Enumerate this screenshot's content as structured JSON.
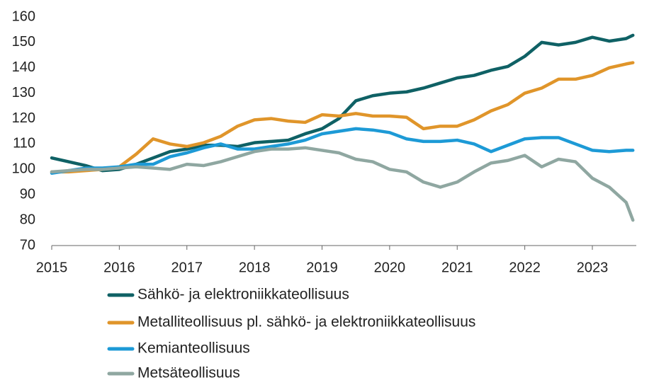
{
  "chart_data": {
    "type": "line",
    "x": [
      2015,
      2015.25,
      2015.5,
      2015.75,
      2016,
      2016.25,
      2016.5,
      2016.75,
      2017,
      2017.25,
      2017.5,
      2017.75,
      2018,
      2018.25,
      2018.5,
      2018.75,
      2019,
      2019.25,
      2019.5,
      2019.75,
      2020,
      2020.25,
      2020.5,
      2020.75,
      2021,
      2021.25,
      2021.5,
      2021.75,
      2022,
      2022.25,
      2022.5,
      2022.75,
      2023,
      2023.25,
      2023.5,
      2023.6
    ],
    "series": [
      {
        "name": "Sähkö- ja elektroniikkateollisuus",
        "color": "#0f6165",
        "values": [
          104.5,
          103,
          101.5,
          99.5,
          100,
          102,
          104.5,
          107,
          108,
          109.5,
          109.5,
          109,
          110.5,
          111,
          111.5,
          114,
          116,
          120,
          127,
          129,
          130,
          130.5,
          132,
          134,
          136,
          137,
          139,
          140.5,
          144.5,
          150,
          149,
          150,
          152,
          150.5,
          151.5,
          152.8
        ]
      },
      {
        "name": "Metalliteollisuus pl. sähkö- ja elektroniikkateollisuus",
        "color": "#e0952a",
        "values": [
          99,
          99,
          99.5,
          100,
          101,
          106,
          112,
          110,
          109,
          110.5,
          113,
          117,
          119.5,
          120,
          119,
          118.5,
          121.5,
          121,
          122,
          121,
          121,
          120.5,
          116,
          117,
          117,
          119.5,
          123,
          125.5,
          130,
          132,
          135.5,
          135.5,
          137,
          140,
          141.5,
          142
        ]
      },
      {
        "name": "Kemianteollisuus",
        "color": "#1d9ad6",
        "values": [
          98.5,
          99.5,
          100.5,
          100.5,
          101,
          102,
          102,
          105,
          106.5,
          108.5,
          110,
          108,
          108,
          109,
          110,
          111.5,
          114,
          115,
          116,
          115.5,
          114.5,
          112,
          111,
          111,
          111.5,
          110,
          107,
          109.5,
          112,
          112.5,
          112.5,
          110,
          107.5,
          107,
          107.5,
          107.5
        ]
      },
      {
        "name": "Metsäteollisuus",
        "color": "#8fa7a1",
        "values": [
          99,
          99.5,
          100,
          100,
          100.5,
          101,
          100.5,
          100,
          102,
          101.5,
          103,
          105,
          107,
          108,
          108,
          108.5,
          107.5,
          106.5,
          104,
          103,
          100,
          99,
          95,
          93,
          95,
          99,
          102.5,
          103.5,
          105.5,
          101,
          104,
          103,
          96.5,
          93,
          87,
          80
        ]
      }
    ],
    "xlim": [
      2015,
      2023.65
    ],
    "xticks": [
      2015,
      2016,
      2017,
      2018,
      2019,
      2020,
      2021,
      2022,
      2023
    ],
    "ylim": [
      70,
      160
    ],
    "yticks": [
      70,
      80,
      90,
      100,
      110,
      120,
      130,
      140,
      150,
      160
    ]
  }
}
